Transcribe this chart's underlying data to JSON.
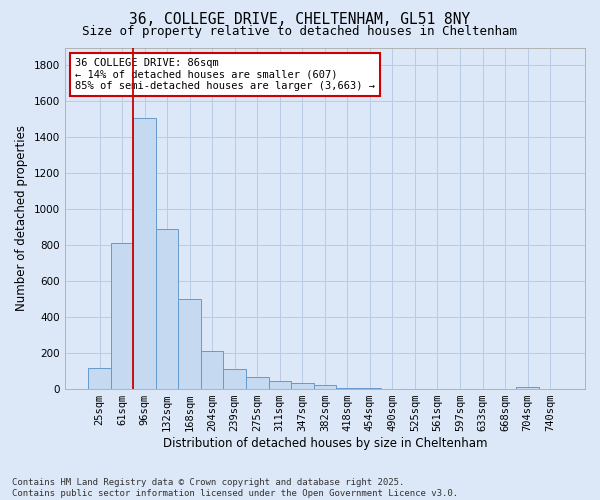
{
  "title_line1": "36, COLLEGE DRIVE, CHELTENHAM, GL51 8NY",
  "title_line2": "Size of property relative to detached houses in Cheltenham",
  "xlabel": "Distribution of detached houses by size in Cheltenham",
  "ylabel": "Number of detached properties",
  "categories": [
    "25sqm",
    "61sqm",
    "96sqm",
    "132sqm",
    "168sqm",
    "204sqm",
    "239sqm",
    "275sqm",
    "311sqm",
    "347sqm",
    "382sqm",
    "418sqm",
    "454sqm",
    "490sqm",
    "525sqm",
    "561sqm",
    "597sqm",
    "633sqm",
    "668sqm",
    "704sqm",
    "740sqm"
  ],
  "values": [
    120,
    810,
    1510,
    890,
    500,
    210,
    110,
    65,
    45,
    35,
    25,
    5,
    5,
    3,
    2,
    2,
    1,
    1,
    1,
    12,
    1
  ],
  "bar_color": "#c5d9f0",
  "bar_edge_color": "#6699cc",
  "bg_color": "#dce8f8",
  "grid_color": "#b8cce4",
  "vline_color": "#cc0000",
  "vline_x": 1.5,
  "annotation_text": "36 COLLEGE DRIVE: 86sqm\n← 14% of detached houses are smaller (607)\n85% of semi-detached houses are larger (3,663) →",
  "annotation_box_facecolor": "#ffffff",
  "annotation_box_edgecolor": "#cc0000",
  "ylim": [
    0,
    1900
  ],
  "yticks": [
    0,
    200,
    400,
    600,
    800,
    1000,
    1200,
    1400,
    1600,
    1800
  ],
  "footnote": "Contains HM Land Registry data © Crown copyright and database right 2025.\nContains public sector information licensed under the Open Government Licence v3.0.",
  "title_fontsize": 10.5,
  "subtitle_fontsize": 9,
  "axis_label_fontsize": 8.5,
  "tick_fontsize": 7.5,
  "annotation_fontsize": 7.5,
  "footnote_fontsize": 6.5
}
